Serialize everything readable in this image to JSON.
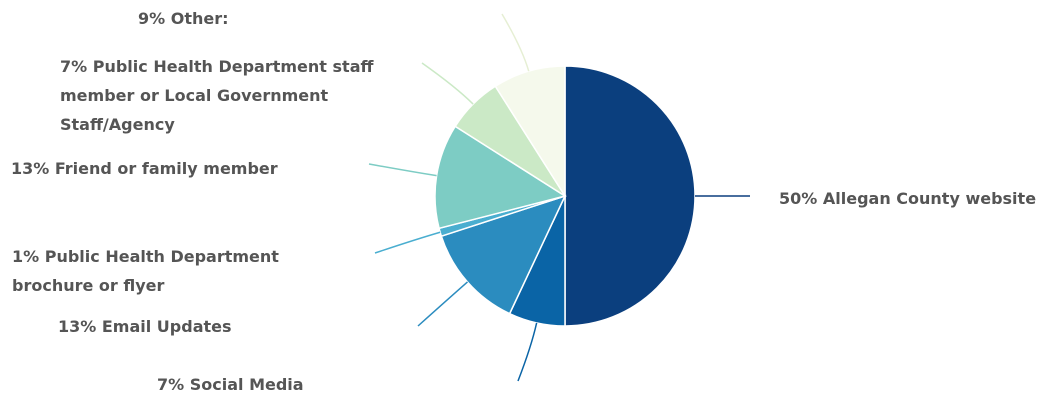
{
  "chart_data": {
    "type": "pie",
    "start_angle_deg": 0,
    "direction": "clockwise",
    "slices": [
      {
        "label": "50% Allegan County website",
        "value": 50,
        "color": "#0b3f7e"
      },
      {
        "label": "7% Social Media",
        "value": 7,
        "color": "#0a64a6"
      },
      {
        "label": "13% Email Updates",
        "value": 13,
        "color": "#2b8cbf"
      },
      {
        "label": "1% Public Health Department brochure or flyer",
        "value": 1,
        "color": "#4aaed0"
      },
      {
        "label": "13% Friend or family member",
        "value": 13,
        "color": "#7dccc4"
      },
      {
        "label": "7% Public Health Department staff member or Local Government Staff/Agency",
        "value": 7,
        "color": "#cbe9c6"
      },
      {
        "label": "9% Other:",
        "value": 9,
        "color": "#f5f9ec"
      }
    ],
    "legend": "none",
    "data_labels": "outside with leader lines"
  }
}
